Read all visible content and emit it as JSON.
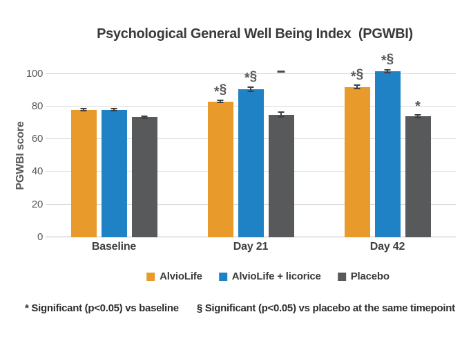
{
  "chart_data": {
    "type": "bar",
    "title": "Psychological General Well Being Index  (PGWBI)",
    "ylabel": "PGWBI score",
    "xlabel": "",
    "ylim": [
      0,
      110
    ],
    "yticks": [
      0,
      20,
      40,
      60,
      80,
      100
    ],
    "grid": true,
    "legend_position": "bottom",
    "categories": [
      "Baseline",
      "Day 21",
      "Day 42"
    ],
    "series": [
      {
        "name": "AlvioLife",
        "color": "#E89B2B",
        "values": [
          78,
          83,
          92
        ],
        "errors": [
          0.7,
          0.7,
          1.0
        ],
        "annotations": [
          "",
          "*§",
          "*§"
        ]
      },
      {
        "name": "AlvioLife + licorice",
        "color": "#1F82C5",
        "values": [
          78,
          90.5,
          101.5
        ],
        "errors": [
          0.7,
          1.3,
          1.0
        ],
        "annotations": [
          "",
          "*§",
          "*§"
        ]
      },
      {
        "name": "Placebo",
        "color": "#58595B",
        "values": [
          73.5,
          75,
          74
        ],
        "errors": [
          0.7,
          1.5,
          0.8
        ],
        "annotations": [
          "",
          "",
          "*"
        ]
      }
    ],
    "stray_marks": [
      {
        "shape": "dash",
        "category": "Day 21",
        "series": "Placebo",
        "value": 100.8
      }
    ]
  },
  "footnotes": {
    "asterisk": "* Significant (p<0.05) vs baseline",
    "section": "§ Significant (p<0.05) vs placebo at the same timepoint"
  }
}
